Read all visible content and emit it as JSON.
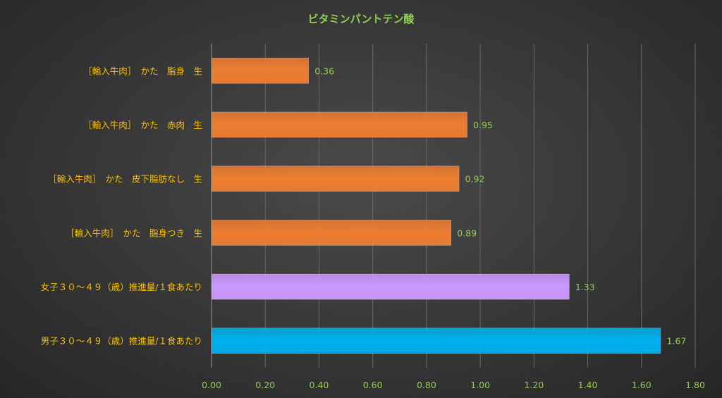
{
  "chart_data": {
    "type": "bar",
    "orientation": "horizontal",
    "title": "ビタミンパントテン酸",
    "categories": [
      "［輸入牛肉］　かた　脂身　生",
      "［輸入牛肉］　かた　赤肉　生",
      "［輸入牛肉］　かた　皮下脂肪なし　生",
      "［輸入牛肉］　かた　脂身つき　生",
      "女子３０～４９（歳）推進量/１食あたり",
      "男子３０～４９（歳）推進量/１食あたり"
    ],
    "values": [
      0.36,
      0.95,
      0.92,
      0.89,
      1.33,
      1.67
    ],
    "value_labels": [
      "0.36",
      "0.95",
      "0.92",
      "0.89",
      "1.33",
      "1.67"
    ],
    "bar_colors": [
      "#ed7d31",
      "#ed7d31",
      "#ed7d31",
      "#ed7d31",
      "#cc99ff",
      "#00b0f0"
    ],
    "xlim": [
      0,
      1.8
    ],
    "x_ticks": [
      "0.00",
      "0.20",
      "0.40",
      "0.60",
      "0.80",
      "1.00",
      "1.20",
      "1.40",
      "1.60",
      "1.80"
    ],
    "grid": true,
    "legend": "none",
    "colors": {
      "title": "#92d050",
      "category_labels": "#ffc000",
      "tick_labels": "#92d050",
      "value_labels": "#92d050",
      "gridlines": "#6a6a6a",
      "axis": "#9a9a9a"
    }
  }
}
